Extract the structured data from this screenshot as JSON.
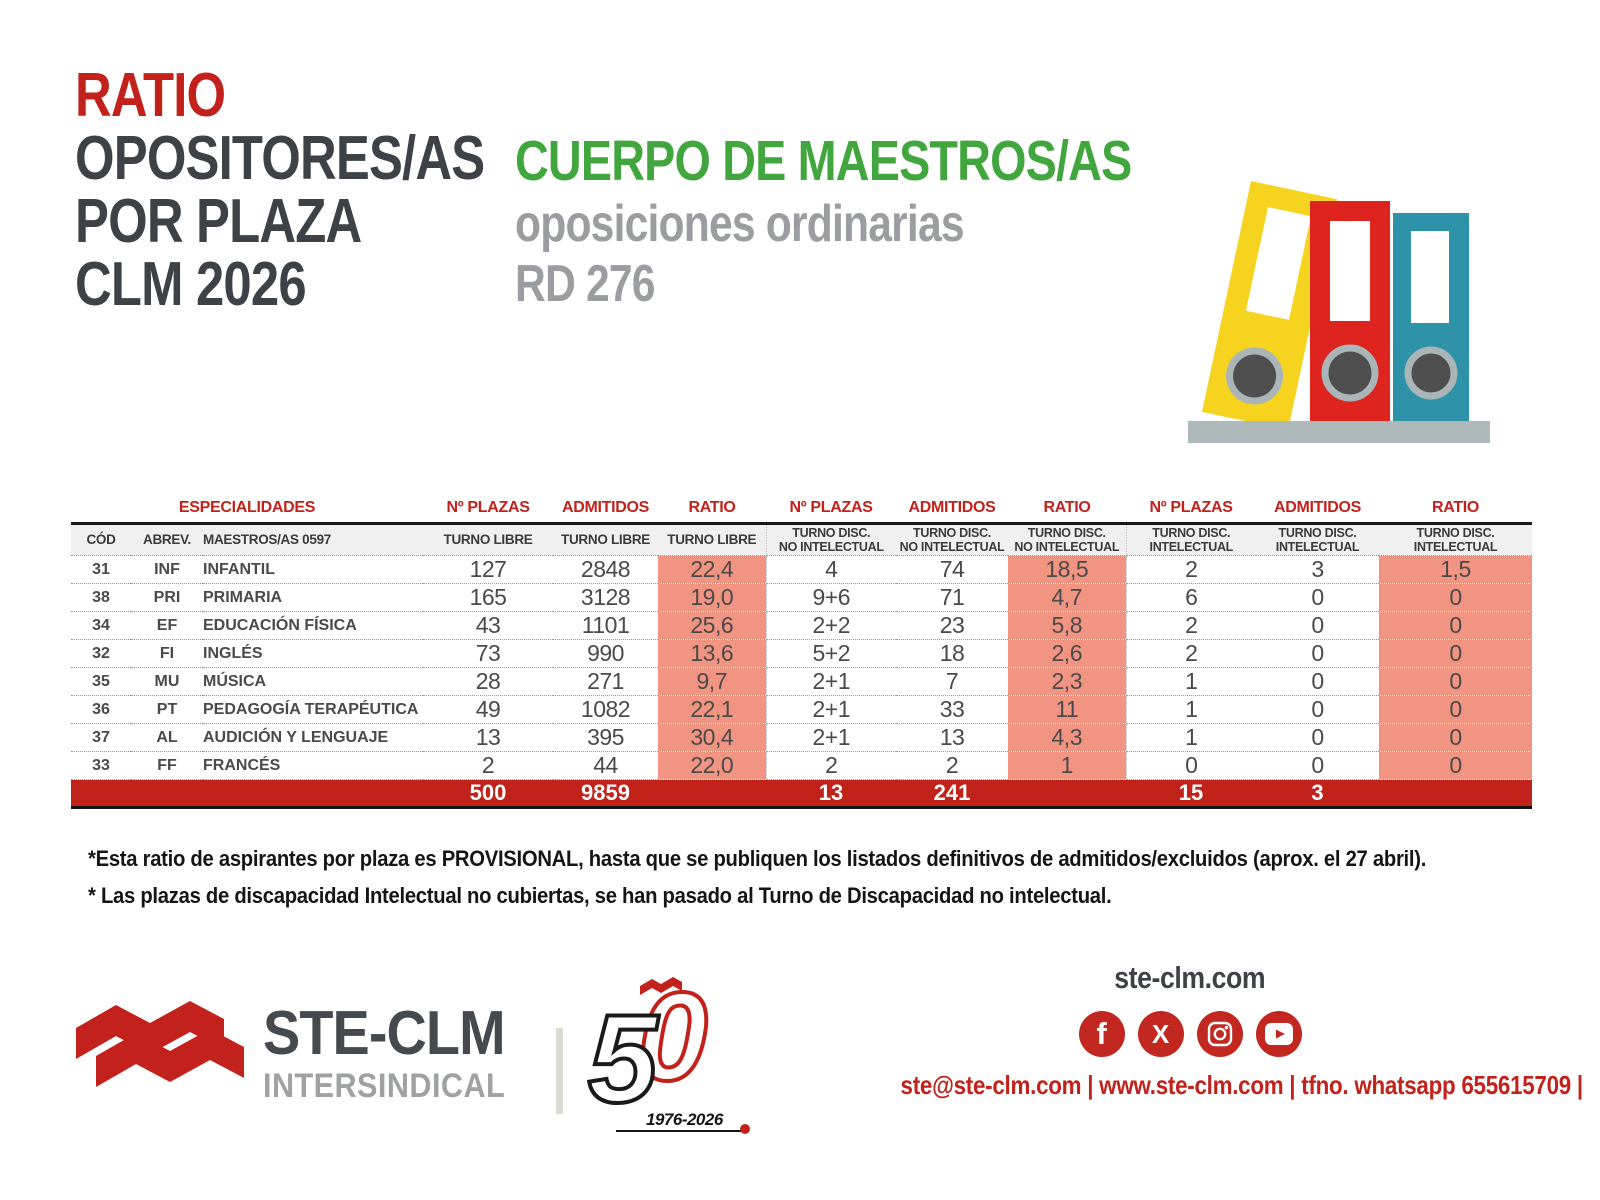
{
  "title": {
    "accent": "RATIO",
    "lines": [
      "OPOSITORES/AS",
      "POR PLAZA",
      "CLM 2026"
    ]
  },
  "subtitle": {
    "heading": "CUERPO DE MAESTROS/AS",
    "line2": "oposiciones ordinarias",
    "line3": "RD 276"
  },
  "table": {
    "group_headers": {
      "especialidades": "ESPECIALIDADES",
      "plazas": "Nº PLAZAS",
      "admitidos": "ADMITIDOS",
      "ratio": "RATIO"
    },
    "subheaders": {
      "cod": "CÓD",
      "abrev": "ABREV.",
      "cuerpo": "MAESTROS/AS 0597",
      "turno_libre": [
        "TURNO LIBRE"
      ],
      "turno_disc_no_int": [
        "TURNO DISC.",
        "NO INTELECTUAL"
      ],
      "turno_disc_int": [
        "TURNO DISC.",
        "INTELECTUAL"
      ]
    },
    "rows": [
      [
        "31",
        "INF",
        "INFANTIL",
        "127",
        "2848",
        "22,4",
        "4",
        "74",
        "18,5",
        "2",
        "3",
        "1,5"
      ],
      [
        "38",
        "PRI",
        "PRIMARIA",
        "165",
        "3128",
        "19,0",
        "9+6",
        "71",
        "4,7",
        "6",
        "0",
        "0"
      ],
      [
        "34",
        "EF",
        "EDUCACIÓN FÍSICA",
        "43",
        "1101",
        "25,6",
        "2+2",
        "23",
        "5,8",
        "2",
        "0",
        "0"
      ],
      [
        "32",
        "FI",
        "INGLÉS",
        "73",
        "990",
        "13,6",
        "5+2",
        "18",
        "2,6",
        "2",
        "0",
        "0"
      ],
      [
        "35",
        "MU",
        "MÚSICA",
        "28",
        "271",
        "9,7",
        "2+1",
        "7",
        "2,3",
        "1",
        "0",
        "0"
      ],
      [
        "36",
        "PT",
        "PEDAGOGÍA TERAPÉUTICA",
        "49",
        "1082",
        "22,1",
        "2+1",
        "33",
        "11",
        "1",
        "0",
        "0"
      ],
      [
        "37",
        "AL",
        "AUDICIÓN Y LENGUAJE",
        "13",
        "395",
        "30,4",
        "2+1",
        "13",
        "4,3",
        "1",
        "0",
        "0"
      ],
      [
        "33",
        "FF",
        "FRANCÉS",
        "2",
        "44",
        "22,0",
        "2",
        "2",
        "1",
        "0",
        "0",
        "0"
      ]
    ],
    "totals": [
      "",
      "",
      "",
      "500",
      "9859",
      "",
      "13",
      "241",
      "",
      "15",
      "3",
      ""
    ]
  },
  "notes": [
    "*Esta ratio de aspirantes por plaza es PROVISIONAL, hasta que se publiquen los listados definitivos de admitidos/excluidos (aprox. el 27 abril).",
    "* Las plazas de discapacidad Intelectual no cubiertas, se han pasado al Turno de Discapacidad no intelectual."
  ],
  "footer": {
    "org_name": "STE-CLM",
    "org_sub": "INTERSINDICAL",
    "anniversary": {
      "five": "5",
      "zero": "0",
      "years": "1976-2026"
    },
    "website": "ste-clm.com",
    "contact": "ste@ste-clm.com | www.ste-clm.com | tfno. whatsapp 655615709 |",
    "social_icons": [
      "facebook",
      "x-twitter",
      "instagram",
      "youtube"
    ]
  },
  "colors": {
    "accent_red": "#c2221b",
    "green": "#42a63f",
    "grey_text": "#9b9da0",
    "dark_text": "#3e4247",
    "salmon": "#f29482",
    "totals_bar": "#c1221a",
    "binder_yellow": "#f6d31f",
    "binder_red": "#de241f",
    "binder_teal": "#2e93a8",
    "shelf_grey": "#aeb9bb",
    "social_red": "#c2281f"
  }
}
